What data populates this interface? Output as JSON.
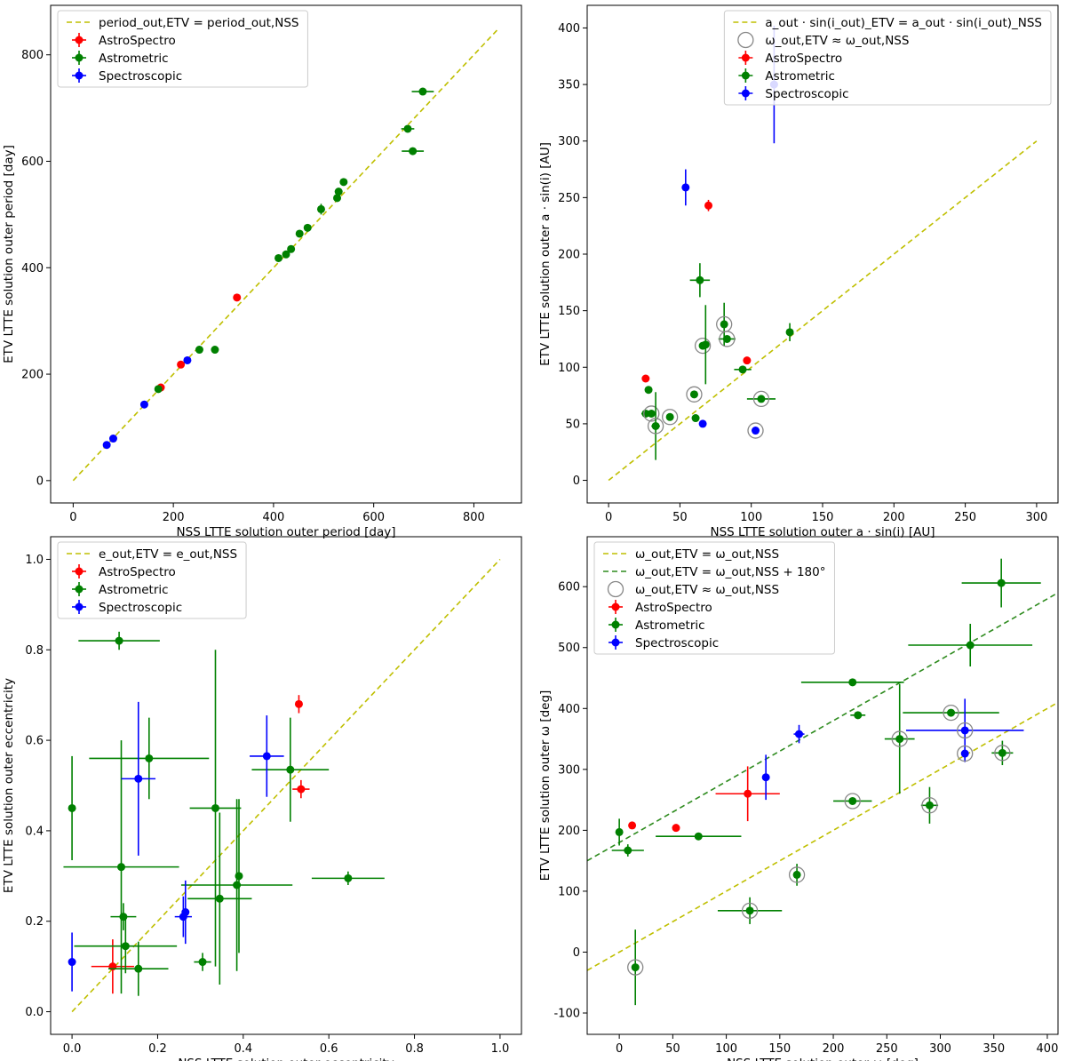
{
  "chart_data": [
    {
      "type": "scatter",
      "xlabel": "NSS LTTE solution outer period [day]",
      "ylabel": "ETV LTTE solution outer period [day]",
      "xlim": [
        -45,
        895
      ],
      "ylim": [
        -42,
        893
      ],
      "xticks": [
        0,
        200,
        400,
        600,
        800
      ],
      "yticks": [
        0,
        200,
        400,
        600,
        800
      ],
      "legend_position": "top-left",
      "reference_lines": [
        {
          "label": "period_out,ETV = period_out,NSS",
          "color": "#bfbf00",
          "points": [
            [
              0,
              0
            ],
            [
              850,
              850
            ]
          ]
        }
      ],
      "show_circle_legend": false,
      "circle_label": "",
      "series": [
        {
          "name": "AstroSpectro",
          "color": "#ff0000",
          "points": [
            {
              "x": 175,
              "y": 175
            },
            {
              "x": 215,
              "y": 218
            },
            {
              "x": 327,
              "y": 344
            }
          ]
        },
        {
          "name": "Astrometric",
          "color": "#008000",
          "points": [
            {
              "x": 170,
              "y": 172
            },
            {
              "x": 252,
              "y": 246
            },
            {
              "x": 283,
              "y": 246
            },
            {
              "x": 410,
              "y": 418
            },
            {
              "x": 425,
              "y": 425
            },
            {
              "x": 435,
              "y": 435
            },
            {
              "x": 452,
              "y": 464
            },
            {
              "x": 468,
              "y": 475
            },
            {
              "x": 495,
              "y": 510,
              "yerr": 10
            },
            {
              "x": 527,
              "y": 531
            },
            {
              "x": 530,
              "y": 543
            },
            {
              "x": 540,
              "y": 561
            },
            {
              "x": 668,
              "y": 661,
              "xerr": 13
            },
            {
              "x": 698,
              "y": 731,
              "xerr": 22
            },
            {
              "x": 678,
              "y": 619,
              "xerr": 22
            }
          ]
        },
        {
          "name": "Spectroscopic",
          "color": "#0000ff",
          "points": [
            {
              "x": 67,
              "y": 67
            },
            {
              "x": 80,
              "y": 79
            },
            {
              "x": 142,
              "y": 143
            },
            {
              "x": 228,
              "y": 226
            }
          ]
        }
      ]
    },
    {
      "type": "scatter",
      "xlabel": "NSS LTTE solution outer a · sin(i) [AU]",
      "ylabel": "ETV LTTE solution outer a · sin(i) [AU]",
      "xlim": [
        -15,
        315
      ],
      "ylim": [
        -20,
        420
      ],
      "xticks": [
        0,
        50,
        100,
        150,
        200,
        250,
        300
      ],
      "yticks": [
        0,
        50,
        100,
        150,
        200,
        250,
        300,
        350,
        400
      ],
      "legend_position": "top-right",
      "reference_lines": [
        {
          "label": "a_out · sin(i_out)_ETV = a_out · sin(i_out)_NSS",
          "color": "#bfbf00",
          "points": [
            [
              0,
              0
            ],
            [
              300,
              300
            ]
          ]
        }
      ],
      "show_circle_legend": true,
      "circle_label": "ω_out,ETV ≈ ω_out,NSS",
      "series": [
        {
          "name": "AstroSpectro",
          "color": "#ff0000",
          "points": [
            {
              "x": 26,
              "y": 90
            },
            {
              "x": 70,
              "y": 243,
              "yerr": 5
            },
            {
              "x": 97,
              "y": 106
            }
          ]
        },
        {
          "name": "Astrometric",
          "color": "#008000",
          "points": [
            {
              "x": 26,
              "y": 59,
              "xerr": 3
            },
            {
              "x": 28,
              "y": 80
            },
            {
              "x": 30,
              "y": 59,
              "circled": true
            },
            {
              "x": 33,
              "y": 48,
              "xerr": 3,
              "yerr": 30,
              "circled": true
            },
            {
              "x": 43,
              "y": 56,
              "circled": true
            },
            {
              "x": 60,
              "y": 76,
              "circled": true
            },
            {
              "x": 61,
              "y": 55
            },
            {
              "x": 64,
              "y": 177,
              "xerr": 7,
              "yerr": 15
            },
            {
              "x": 66,
              "y": 119,
              "circled": true
            },
            {
              "x": 68,
              "y": 120,
              "yerr": 35
            },
            {
              "x": 81,
              "y": 138,
              "circled": true,
              "yerr": 19
            },
            {
              "x": 83,
              "y": 125,
              "xerr": 6,
              "circled": true
            },
            {
              "x": 94,
              "y": 98,
              "xerr": 6
            },
            {
              "x": 107,
              "y": 72,
              "xerr": 10,
              "circled": true
            },
            {
              "x": 127,
              "y": 131,
              "yerr": 8
            }
          ]
        },
        {
          "name": "Spectroscopic",
          "color": "#0000ff",
          "points": [
            {
              "x": 54,
              "y": 259,
              "yerr": 16
            },
            {
              "x": 66,
              "y": 50
            },
            {
              "x": 103,
              "y": 44,
              "circled": true
            },
            {
              "x": 116,
              "y": 350,
              "yerr": 52
            }
          ]
        }
      ]
    },
    {
      "type": "scatter",
      "xlabel": "NSS LTTE solution outer eccentricity",
      "ylabel": "ETV LTTE solution outer eccentricity",
      "xlim": [
        -0.05,
        1.05
      ],
      "ylim": [
        -0.05,
        1.05
      ],
      "xticks": [
        0.0,
        0.2,
        0.4,
        0.6,
        0.8,
        1.0
      ],
      "yticks": [
        0.0,
        0.2,
        0.4,
        0.6,
        0.8,
        1.0
      ],
      "legend_position": "top-left",
      "reference_lines": [
        {
          "label": "e_out,ETV = e_out,NSS",
          "color": "#bfbf00",
          "points": [
            [
              0,
              0
            ],
            [
              1,
              1
            ]
          ]
        }
      ],
      "show_circle_legend": false,
      "circle_label": "",
      "series": [
        {
          "name": "AstroSpectro",
          "color": "#ff0000",
          "points": [
            {
              "x": 0.095,
              "y": 0.1,
              "xerr": 0.05,
              "yerr": 0.06
            },
            {
              "x": 0.53,
              "y": 0.68,
              "yerr": 0.02
            },
            {
              "x": 0.535,
              "y": 0.492,
              "xerr": 0.02,
              "yerr": 0.02
            }
          ]
        },
        {
          "name": "Astrometric",
          "color": "#008000",
          "points": [
            {
              "x": 0.0,
              "y": 0.45,
              "yerr": 0.115
            },
            {
              "x": 0.11,
              "y": 0.82,
              "xerr": 0.095,
              "yerr": 0.02
            },
            {
              "x": 0.115,
              "y": 0.32,
              "xerr": 0.135,
              "yerr": 0.28
            },
            {
              "x": 0.12,
              "y": 0.21,
              "xerr": 0.03,
              "yerr": 0.03
            },
            {
              "x": 0.125,
              "y": 0.145,
              "xerr": 0.12,
              "yerr": 0.06
            },
            {
              "x": 0.155,
              "y": 0.095,
              "xerr": 0.07,
              "yerr": 0.06
            },
            {
              "x": 0.18,
              "y": 0.56,
              "xerr": 0.14,
              "yerr": 0.09
            },
            {
              "x": 0.305,
              "y": 0.11,
              "xerr": 0.02,
              "yerr": 0.02
            },
            {
              "x": 0.335,
              "y": 0.45,
              "xerr": 0.06,
              "yerr": 0.35
            },
            {
              "x": 0.345,
              "y": 0.25,
              "xerr": 0.075,
              "yerr": 0.19
            },
            {
              "x": 0.385,
              "y": 0.28,
              "xerr": 0.13,
              "yerr": 0.19
            },
            {
              "x": 0.39,
              "y": 0.3,
              "yerr": 0.17
            },
            {
              "x": 0.51,
              "y": 0.535,
              "xerr": 0.09,
              "yerr": 0.115
            },
            {
              "x": 0.645,
              "y": 0.295,
              "xerr": 0.085,
              "yerr": 0.015
            }
          ]
        },
        {
          "name": "Spectroscopic",
          "color": "#0000ff",
          "points": [
            {
              "x": 0.0,
              "y": 0.11,
              "yerr": 0.065
            },
            {
              "x": 0.155,
              "y": 0.515,
              "xerr": 0.04,
              "yerr": 0.17
            },
            {
              "x": 0.26,
              "y": 0.21,
              "xerr": 0.02,
              "yerr": 0.045
            },
            {
              "x": 0.265,
              "y": 0.22,
              "yerr": 0.07
            },
            {
              "x": 0.455,
              "y": 0.565,
              "xerr": 0.04,
              "yerr": 0.09
            }
          ]
        }
      ]
    },
    {
      "type": "scatter",
      "xlabel": "NSS LTTE solution outer ω [deg]",
      "ylabel": "ETV LTTE solution outer ω [deg]",
      "xlim": [
        -30,
        410
      ],
      "ylim": [
        -135,
        682
      ],
      "xticks": [
        0,
        50,
        100,
        150,
        200,
        250,
        300,
        350,
        400
      ],
      "yticks": [
        -100,
        0,
        100,
        200,
        300,
        400,
        500,
        600
      ],
      "legend_position": "top-left",
      "reference_lines": [
        {
          "label": "ω_out,ETV = ω_out,NSS",
          "color": "#bfbf00",
          "points": [
            [
              -30,
              -30
            ],
            [
              410,
              410
            ]
          ]
        },
        {
          "label": "ω_out,ETV = ω_out,NSS + 180°",
          "color": "#2e8b1e",
          "points": [
            [
              -30,
              150
            ],
            [
              410,
              590
            ]
          ]
        }
      ],
      "show_circle_legend": true,
      "circle_label": "ω_out,ETV ≈ ω_out,NSS",
      "series": [
        {
          "name": "AstroSpectro",
          "color": "#ff0000",
          "points": [
            {
              "x": 12,
              "y": 208
            },
            {
              "x": 53,
              "y": 204
            },
            {
              "x": 120,
              "y": 260,
              "xerr": 30,
              "yerr": 45
            }
          ]
        },
        {
          "name": "Astrometric",
          "color": "#008000",
          "points": [
            {
              "x": 0,
              "y": 197,
              "yerr": 22
            },
            {
              "x": 8,
              "y": 167,
              "xerr": 15,
              "yerr": 10
            },
            {
              "x": 15,
              "y": -25,
              "yerr": 62,
              "circled": true
            },
            {
              "x": 74,
              "y": 190,
              "xerr": 40
            },
            {
              "x": 122,
              "y": 68,
              "xerr": 30,
              "yerr": 22,
              "circled": true
            },
            {
              "x": 166,
              "y": 127,
              "yerr": 18,
              "circled": true
            },
            {
              "x": 218,
              "y": 443,
              "xerr": 48
            },
            {
              "x": 218,
              "y": 248,
              "xerr": 18,
              "circled": true
            },
            {
              "x": 223,
              "y": 389,
              "xerr": 7
            },
            {
              "x": 262,
              "y": 350,
              "xerr": 14,
              "yerr": 90,
              "circled": true
            },
            {
              "x": 290,
              "y": 241,
              "xerr": 8,
              "yerr": 30,
              "circled": true
            },
            {
              "x": 310,
              "y": 393,
              "xerr": 45,
              "circled": true
            },
            {
              "x": 328,
              "y": 504,
              "xerr": 58,
              "yerr": 35
            },
            {
              "x": 357,
              "y": 606,
              "xerr": 37,
              "yerr": 40
            },
            {
              "x": 358,
              "y": 327,
              "xerr": 10,
              "yerr": 20,
              "circled": true
            }
          ]
        },
        {
          "name": "Spectroscopic",
          "color": "#0000ff",
          "points": [
            {
              "x": 137,
              "y": 287,
              "yerr": 37
            },
            {
              "x": 168,
              "y": 358,
              "xerr": 5,
              "yerr": 15
            },
            {
              "x": 323,
              "y": 364,
              "xerr": 55,
              "yerr": 52,
              "circled": true
            },
            {
              "x": 323,
              "y": 326,
              "yerr": 10,
              "circled": true
            }
          ]
        }
      ]
    }
  ]
}
